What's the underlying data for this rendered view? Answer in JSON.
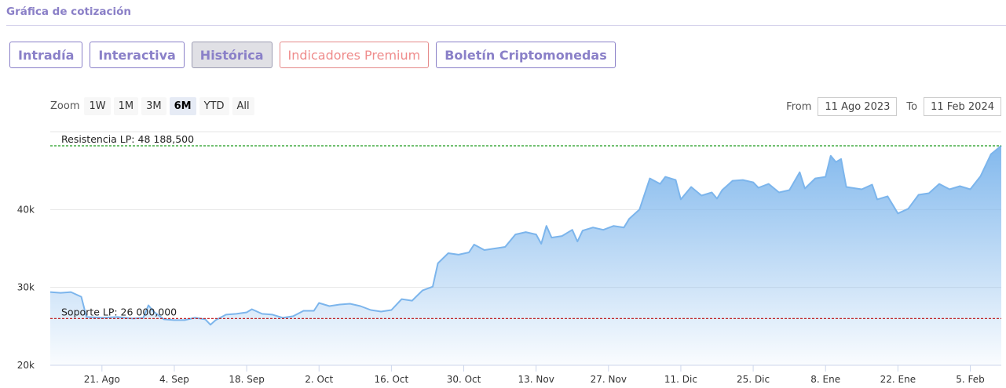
{
  "header": {
    "title": "Gráfica de cotización"
  },
  "tabs": [
    {
      "label": "Intradía",
      "state": "normal"
    },
    {
      "label": "Interactiva",
      "state": "normal"
    },
    {
      "label": "Histórica",
      "state": "active"
    },
    {
      "label": "Indicadores Premium",
      "state": "premium"
    },
    {
      "label": "Boletín Criptomonedas",
      "state": "normal"
    }
  ],
  "zoom": {
    "label": "Zoom",
    "options": [
      "1W",
      "1M",
      "3M",
      "6M",
      "YTD",
      "All"
    ],
    "selected": "6M"
  },
  "range": {
    "from_label": "From",
    "from_value": "11 Ago 2023",
    "to_label": "To",
    "to_value": "11 Feb 2024"
  },
  "colors": {
    "accent": "#8a80c8",
    "premium": "#ef8c8c",
    "series": "#7cb5ec",
    "resistance": "#1e9b1e",
    "support": "#c0282d"
  },
  "chart_data": {
    "type": "area",
    "title": "",
    "xlabel": "",
    "ylabel": "",
    "x_tick_labels": [
      "21. Ago",
      "4. Sep",
      "18. Sep",
      "2. Oct",
      "16. Oct",
      "30. Oct",
      "13. Nov",
      "27. Nov",
      "11. Dic",
      "25. Dic",
      "8. Ene",
      "22. Ene",
      "5. Feb"
    ],
    "y_tick_labels": [
      "20k",
      "30k",
      "40k"
    ],
    "ylim": [
      20000,
      50000
    ],
    "x_range": [
      "2023-08-11",
      "2024-02-11"
    ],
    "grid": true,
    "plot_lines": [
      {
        "label": "Resistencia LP: 48 188,500",
        "value": 48188.5,
        "color": "#1e9b1e"
      },
      {
        "label": "Soporte LP: 26 000,000",
        "value": 26000,
        "color": "#c0282d"
      }
    ],
    "series": [
      {
        "points": [
          [
            "2023-08-11",
            29400
          ],
          [
            "2023-08-13",
            29300
          ],
          [
            "2023-08-15",
            29400
          ],
          [
            "2023-08-17",
            28800
          ],
          [
            "2023-08-18",
            26200
          ],
          [
            "2023-08-21",
            26100
          ],
          [
            "2023-08-24",
            26200
          ],
          [
            "2023-08-27",
            26000
          ],
          [
            "2023-08-29",
            26100
          ],
          [
            "2023-08-30",
            27700
          ],
          [
            "2023-08-31",
            26900
          ],
          [
            "2023-09-02",
            25900
          ],
          [
            "2023-09-04",
            25800
          ],
          [
            "2023-09-06",
            25800
          ],
          [
            "2023-09-08",
            26100
          ],
          [
            "2023-09-10",
            25900
          ],
          [
            "2023-09-11",
            25200
          ],
          [
            "2023-09-12",
            25800
          ],
          [
            "2023-09-14",
            26500
          ],
          [
            "2023-09-16",
            26600
          ],
          [
            "2023-09-18",
            26800
          ],
          [
            "2023-09-19",
            27200
          ],
          [
            "2023-09-21",
            26600
          ],
          [
            "2023-09-23",
            26500
          ],
          [
            "2023-09-25",
            26100
          ],
          [
            "2023-09-27",
            26300
          ],
          [
            "2023-09-29",
            27000
          ],
          [
            "2023-10-01",
            27000
          ],
          [
            "2023-10-02",
            28000
          ],
          [
            "2023-10-04",
            27600
          ],
          [
            "2023-10-06",
            27800
          ],
          [
            "2023-10-08",
            27900
          ],
          [
            "2023-10-10",
            27600
          ],
          [
            "2023-10-12",
            27100
          ],
          [
            "2023-10-14",
            26900
          ],
          [
            "2023-10-16",
            27100
          ],
          [
            "2023-10-18",
            28500
          ],
          [
            "2023-10-20",
            28300
          ],
          [
            "2023-10-22",
            29600
          ],
          [
            "2023-10-24",
            30100
          ],
          [
            "2023-10-25",
            33100
          ],
          [
            "2023-10-27",
            34400
          ],
          [
            "2023-10-29",
            34200
          ],
          [
            "2023-10-31",
            34500
          ],
          [
            "2023-11-01",
            35500
          ],
          [
            "2023-11-03",
            34800
          ],
          [
            "2023-11-05",
            35000
          ],
          [
            "2023-11-07",
            35200
          ],
          [
            "2023-11-09",
            36800
          ],
          [
            "2023-11-11",
            37100
          ],
          [
            "2023-11-13",
            36800
          ],
          [
            "2023-11-14",
            35600
          ],
          [
            "2023-11-15",
            37900
          ],
          [
            "2023-11-16",
            36400
          ],
          [
            "2023-11-18",
            36600
          ],
          [
            "2023-11-20",
            37400
          ],
          [
            "2023-11-21",
            35900
          ],
          [
            "2023-11-22",
            37300
          ],
          [
            "2023-11-24",
            37700
          ],
          [
            "2023-11-26",
            37400
          ],
          [
            "2023-11-28",
            37900
          ],
          [
            "2023-11-30",
            37700
          ],
          [
            "2023-12-01",
            38800
          ],
          [
            "2023-12-03",
            40000
          ],
          [
            "2023-12-05",
            44000
          ],
          [
            "2023-12-07",
            43300
          ],
          [
            "2023-12-08",
            44200
          ],
          [
            "2023-12-10",
            43800
          ],
          [
            "2023-12-11",
            41300
          ],
          [
            "2023-12-13",
            42900
          ],
          [
            "2023-12-15",
            41800
          ],
          [
            "2023-12-17",
            42200
          ],
          [
            "2023-12-18",
            41400
          ],
          [
            "2023-12-19",
            42500
          ],
          [
            "2023-12-21",
            43700
          ],
          [
            "2023-12-23",
            43800
          ],
          [
            "2023-12-25",
            43500
          ],
          [
            "2023-12-26",
            42800
          ],
          [
            "2023-12-28",
            43300
          ],
          [
            "2023-12-30",
            42200
          ],
          [
            "2024-01-01",
            42500
          ],
          [
            "2024-01-03",
            44800
          ],
          [
            "2024-01-04",
            42700
          ],
          [
            "2024-01-06",
            44000
          ],
          [
            "2024-01-08",
            44200
          ],
          [
            "2024-01-09",
            46900
          ],
          [
            "2024-01-10",
            46100
          ],
          [
            "2024-01-11",
            46500
          ],
          [
            "2024-01-12",
            42900
          ],
          [
            "2024-01-13",
            42800
          ],
          [
            "2024-01-15",
            42600
          ],
          [
            "2024-01-17",
            43200
          ],
          [
            "2024-01-18",
            41300
          ],
          [
            "2024-01-20",
            41700
          ],
          [
            "2024-01-22",
            39500
          ],
          [
            "2024-01-24",
            40100
          ],
          [
            "2024-01-26",
            41900
          ],
          [
            "2024-01-28",
            42100
          ],
          [
            "2024-01-30",
            43300
          ],
          [
            "2024-02-01",
            42600
          ],
          [
            "2024-02-03",
            43000
          ],
          [
            "2024-02-05",
            42600
          ],
          [
            "2024-02-07",
            44300
          ],
          [
            "2024-02-09",
            47100
          ],
          [
            "2024-02-11",
            48200
          ]
        ]
      }
    ]
  }
}
